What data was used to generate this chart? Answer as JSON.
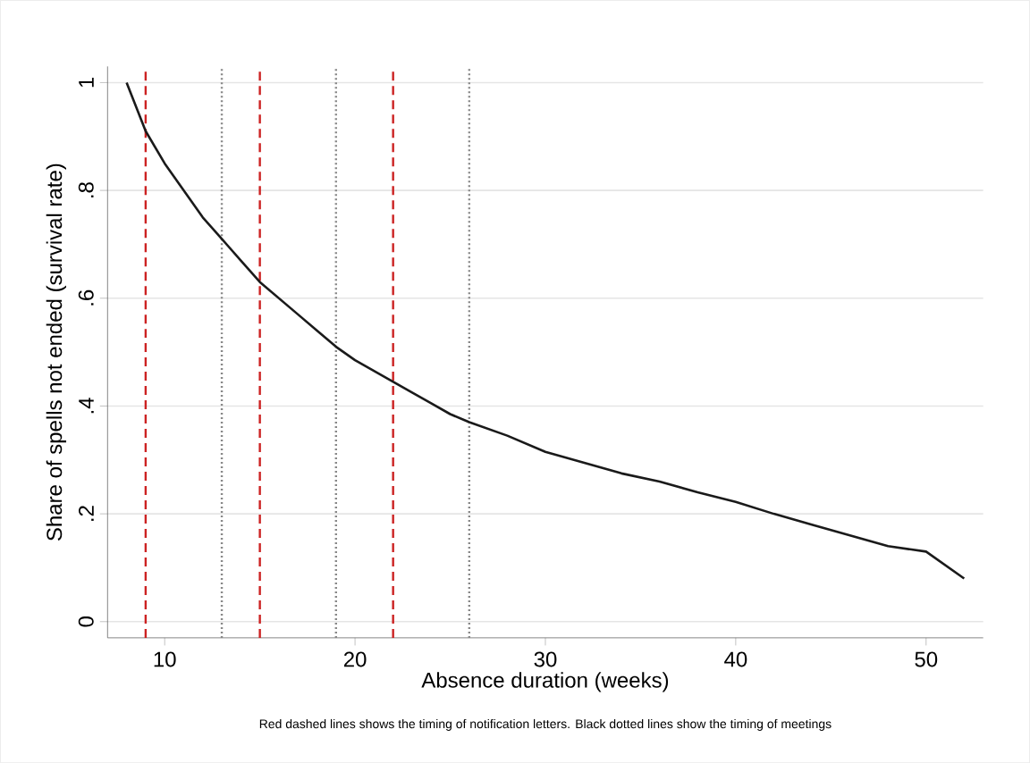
{
  "chart_data": {
    "type": "line",
    "xlabel": "Absence duration (weeks)",
    "ylabel": "Share of spells not ended (survival rate)",
    "annotations": [
      "Red dashed lines shows the timing of notification letters. Black dotted lines show the timing of meetings"
    ],
    "x": [
      8,
      9,
      10,
      11,
      12,
      13,
      14,
      15,
      16,
      17,
      18,
      19,
      20,
      21,
      22,
      23,
      24,
      25,
      26,
      28,
      30,
      32,
      34,
      36,
      38,
      40,
      42,
      44,
      46,
      48,
      50,
      52
    ],
    "series": [
      {
        "color": "#1a1a1a",
        "values": [
          1.0,
          0.91,
          0.85,
          0.8,
          0.75,
          0.71,
          0.67,
          0.63,
          0.6,
          0.57,
          0.54,
          0.51,
          0.485,
          0.465,
          0.445,
          0.425,
          0.405,
          0.385,
          0.37,
          0.345,
          0.315,
          0.295,
          0.275,
          0.26,
          0.24,
          0.222,
          0.2,
          0.18,
          0.16,
          0.14,
          0.13,
          0.08
        ]
      }
    ],
    "xlim": [
      7,
      53
    ],
    "ylim": [
      -0.03,
      1.03
    ],
    "xticks": [
      10,
      20,
      30,
      40,
      50
    ],
    "yticks": [
      0,
      {
        "value": 0.2,
        "label": ".2"
      },
      {
        "value": 0.4,
        "label": ".4"
      },
      {
        "value": 0.6,
        "label": ".6"
      },
      {
        "value": 0.8,
        "label": ".8"
      },
      1
    ],
    "grid": "y",
    "marker": "none",
    "line_style": "solid",
    "ref_lines": [
      {
        "axis": "x",
        "value": 9,
        "color": "#cc2222",
        "line_style": "dashed"
      },
      {
        "axis": "x",
        "value": 15,
        "color": "#cc2222",
        "line_style": "dashed"
      },
      {
        "axis": "x",
        "value": 22,
        "color": "#cc2222",
        "line_style": "dashed"
      },
      {
        "axis": "x",
        "value": 13,
        "color": "#888888",
        "line_style": "dotted"
      },
      {
        "axis": "x",
        "value": 19,
        "color": "#888888",
        "line_style": "dotted"
      },
      {
        "axis": "x",
        "value": 26,
        "color": "#888888",
        "line_style": "dotted"
      }
    ]
  }
}
